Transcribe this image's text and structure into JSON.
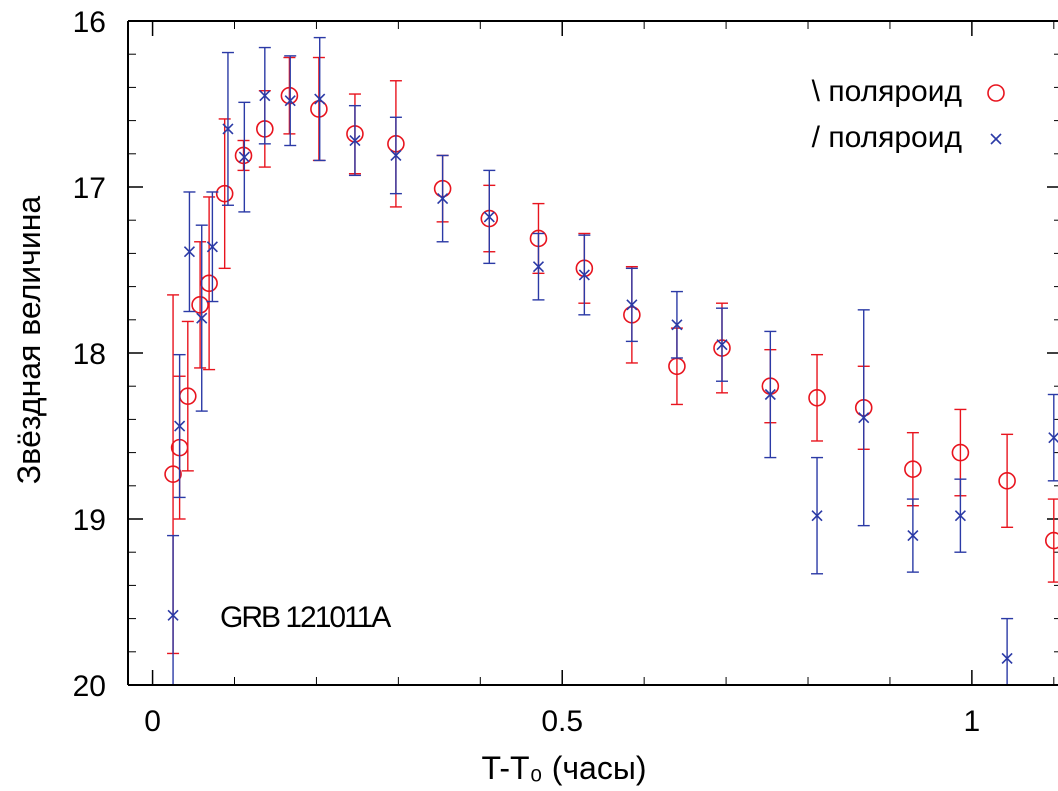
{
  "chart_data": {
    "type": "scatter",
    "title": "",
    "xlabel": "T-T₀ (часы)",
    "ylabel": "Звёздная величина",
    "xlim": [
      -0.03,
      1.11
    ],
    "ylim": [
      20,
      16
    ],
    "y_inverted": true,
    "x_ticks": [
      0,
      0.5,
      1
    ],
    "x_tick_labels": [
      "0",
      "0.5",
      "1"
    ],
    "x_minor_step": 0.1,
    "y_ticks": [
      16,
      17,
      18,
      19,
      20
    ],
    "y_tick_labels": [
      "16",
      "17",
      "18",
      "19",
      "20"
    ],
    "y_minor_step": 0.2,
    "grid": false,
    "legend_position": "top-right",
    "annotation": "GRB 121011A",
    "colors": {
      "red": "#e8141e",
      "blue": "#2b3aa6"
    },
    "series": [
      {
        "name": "\\ поляроид",
        "marker": "circle",
        "color": "#e8141e",
        "points": [
          {
            "x": 0.025,
            "y": 18.73,
            "err": 1.08
          },
          {
            "x": 0.033,
            "y": 18.57,
            "err": 0.43
          },
          {
            "x": 0.043,
            "y": 18.26,
            "err": 0.45
          },
          {
            "x": 0.058,
            "y": 17.71,
            "err": 0.38
          },
          {
            "x": 0.069,
            "y": 17.58,
            "err": 0.52
          },
          {
            "x": 0.088,
            "y": 17.04,
            "err": 0.45
          },
          {
            "x": 0.111,
            "y": 16.81,
            "err": 0.09
          },
          {
            "x": 0.137,
            "y": 16.65,
            "err": 0.23
          },
          {
            "x": 0.167,
            "y": 16.45,
            "err": 0.23
          },
          {
            "x": 0.203,
            "y": 16.53,
            "err": 0.31
          },
          {
            "x": 0.247,
            "y": 16.68,
            "err": 0.24
          },
          {
            "x": 0.297,
            "y": 16.74,
            "err": 0.38
          },
          {
            "x": 0.354,
            "y": 17.01,
            "err": 0.2
          },
          {
            "x": 0.411,
            "y": 17.19,
            "err": 0.2
          },
          {
            "x": 0.471,
            "y": 17.31,
            "err": 0.21
          },
          {
            "x": 0.527,
            "y": 17.49,
            "err": 0.21
          },
          {
            "x": 0.585,
            "y": 17.77,
            "err": 0.29
          },
          {
            "x": 0.64,
            "y": 18.08,
            "err": 0.23
          },
          {
            "x": 0.695,
            "y": 17.97,
            "err": 0.27
          },
          {
            "x": 0.754,
            "y": 18.2,
            "err": 0.22
          },
          {
            "x": 0.811,
            "y": 18.27,
            "err": 0.26
          },
          {
            "x": 0.868,
            "y": 18.33,
            "err": 0.25
          },
          {
            "x": 0.928,
            "y": 18.7,
            "err": 0.22
          },
          {
            "x": 0.986,
            "y": 18.6,
            "err": 0.26
          },
          {
            "x": 1.043,
            "y": 18.77,
            "err": 0.28
          },
          {
            "x": 1.1,
            "y": 19.13,
            "err": 0.25
          }
        ]
      },
      {
        "name": "/ поляроид",
        "marker": "cross",
        "color": "#2b3aa6",
        "points": [
          {
            "x": 0.025,
            "y": 19.58,
            "err": 0.48
          },
          {
            "x": 0.033,
            "y": 18.44,
            "err": 0.43
          },
          {
            "x": 0.045,
            "y": 17.39,
            "err": 0.36
          },
          {
            "x": 0.06,
            "y": 17.79,
            "err": 0.56
          },
          {
            "x": 0.073,
            "y": 17.36,
            "err": 0.33
          },
          {
            "x": 0.092,
            "y": 16.65,
            "err": 0.46
          },
          {
            "x": 0.112,
            "y": 16.82,
            "err": 0.33
          },
          {
            "x": 0.137,
            "y": 16.45,
            "err": 0.29
          },
          {
            "x": 0.168,
            "y": 16.48,
            "err": 0.27
          },
          {
            "x": 0.204,
            "y": 16.47,
            "err": 0.37
          },
          {
            "x": 0.247,
            "y": 16.72,
            "err": 0.21
          },
          {
            "x": 0.297,
            "y": 16.81,
            "err": 0.23
          },
          {
            "x": 0.354,
            "y": 17.07,
            "err": 0.26
          },
          {
            "x": 0.411,
            "y": 17.18,
            "err": 0.28
          },
          {
            "x": 0.471,
            "y": 17.48,
            "err": 0.2
          },
          {
            "x": 0.527,
            "y": 17.53,
            "err": 0.24
          },
          {
            "x": 0.585,
            "y": 17.71,
            "err": 0.22
          },
          {
            "x": 0.64,
            "y": 17.83,
            "err": 0.2
          },
          {
            "x": 0.695,
            "y": 17.95,
            "err": 0.22
          },
          {
            "x": 0.754,
            "y": 18.25,
            "err": 0.38
          },
          {
            "x": 0.811,
            "y": 18.98,
            "err": 0.35
          },
          {
            "x": 0.868,
            "y": 18.39,
            "err": 0.65
          },
          {
            "x": 0.928,
            "y": 19.1,
            "err": 0.22
          },
          {
            "x": 0.986,
            "y": 18.98,
            "err": 0.22
          },
          {
            "x": 1.043,
            "y": 19.84,
            "err": 0.24
          },
          {
            "x": 1.1,
            "y": 18.51,
            "err": 0.26
          }
        ]
      }
    ]
  }
}
